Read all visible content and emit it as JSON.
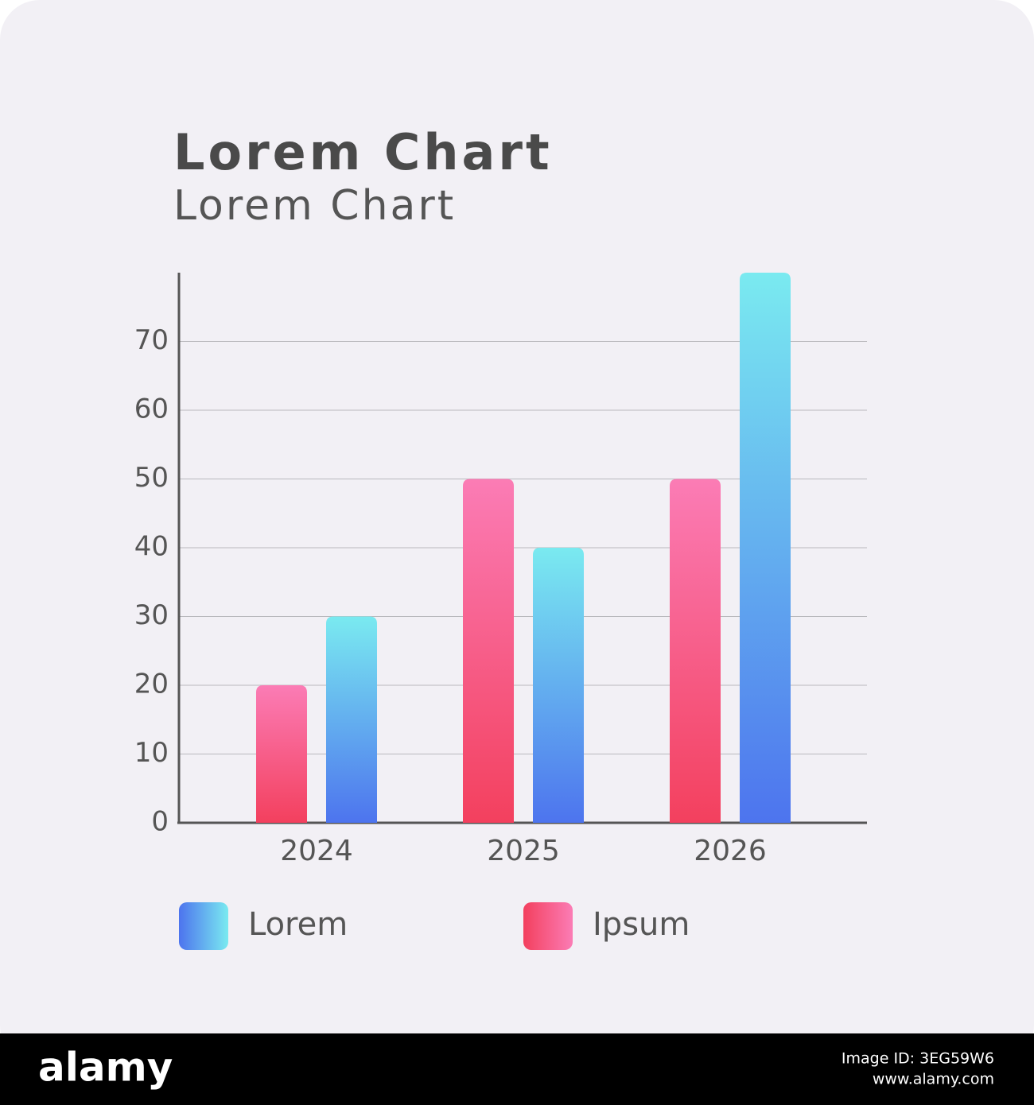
{
  "chart_data": {
    "type": "bar",
    "title": "Lorem Chart",
    "subtitle": "Lorem Chart",
    "categories": [
      "2024",
      "2025",
      "2026"
    ],
    "series": [
      {
        "name": "Lorem",
        "color": "#4d74ee",
        "color_top": "#7aeaf0",
        "values": [
          30,
          40,
          80
        ]
      },
      {
        "name": "Ipsum",
        "color": "#f3405e",
        "color_top": "#fb7cb5",
        "values": [
          20,
          50,
          50
        ]
      }
    ],
    "ylim": [
      0,
      80
    ],
    "yticks": [
      0,
      10,
      20,
      30,
      40,
      50,
      60,
      70
    ],
    "grid": true
  },
  "footer": {
    "brand": "alamy",
    "image_id": "Image ID: 3EG59W6",
    "site": "www.alamy.com"
  }
}
